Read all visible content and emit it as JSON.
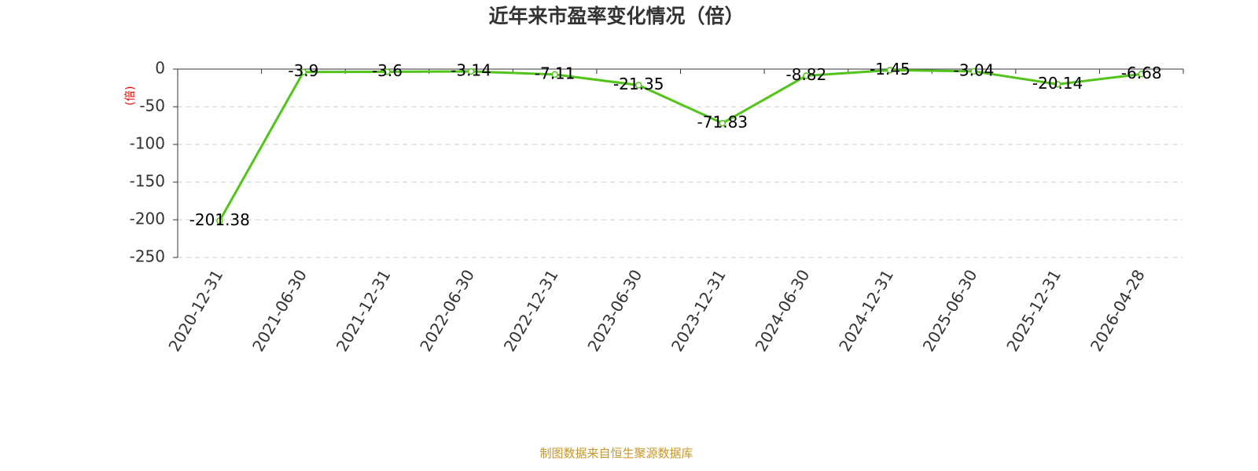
{
  "chart_data": {
    "type": "line",
    "title": "近年来市盈率变化情况（倍）",
    "y_label": "(倍)",
    "source": "制图数据来自恒生聚源数据库",
    "categories": [
      "2020-12-31",
      "2021-06-30",
      "2021-12-31",
      "2022-06-30",
      "2022-12-31",
      "2023-06-30",
      "2023-12-31",
      "2024-06-30",
      "2024-12-31",
      "2025-06-30",
      "2025-12-31",
      "2026-04-28"
    ],
    "values": [
      -201.38,
      -3.9,
      -3.6,
      -3.14,
      -7.11,
      -21.35,
      -71.83,
      -8.82,
      -1.45,
      -3.04,
      -20.14,
      -6.68
    ],
    "color": "#52c41a",
    "ylim": [
      -250,
      0
    ],
    "yticks": [
      0,
      -50,
      -100,
      -150,
      -200,
      -250
    ],
    "grid": true
  }
}
